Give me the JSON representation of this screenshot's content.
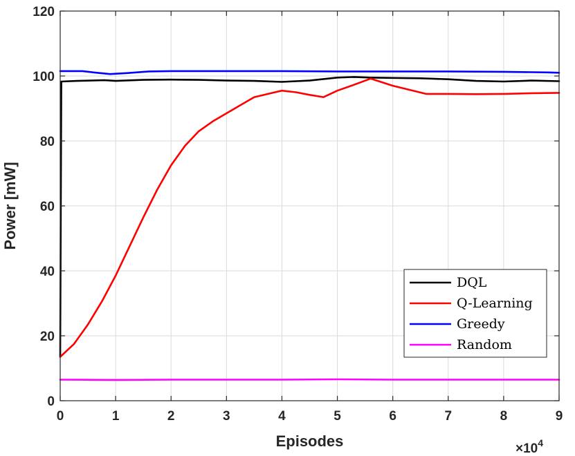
{
  "chart_data": {
    "type": "line",
    "title": "",
    "xlabel": "Episodes",
    "ylabel": "Power [mW]",
    "x_multiplier": "×10",
    "x_multiplier_exp": "4",
    "xlim": [
      0,
      9
    ],
    "ylim": [
      0,
      120
    ],
    "xticks": [
      0,
      1,
      2,
      3,
      4,
      5,
      6,
      7,
      8,
      9
    ],
    "yticks": [
      0,
      20,
      40,
      60,
      80,
      100,
      120
    ],
    "grid": true,
    "legend_position": "bottom-right",
    "series": [
      {
        "name": "DQL",
        "color": "#000000",
        "x": [
          0,
          0.02,
          0.3,
          0.8,
          1.0,
          1.5,
          2.0,
          2.5,
          3.0,
          3.5,
          4.0,
          4.5,
          5.0,
          5.3,
          5.6,
          6.0,
          6.5,
          7.0,
          7.5,
          8.0,
          8.5,
          9.0
        ],
        "y": [
          13.5,
          98.3,
          98.5,
          98.7,
          98.5,
          98.8,
          98.9,
          98.8,
          98.6,
          98.5,
          98.2,
          98.6,
          99.5,
          99.7,
          99.5,
          99.4,
          99.3,
          99.0,
          98.5,
          98.3,
          98.6,
          98.4
        ]
      },
      {
        "name": "Q-Learning",
        "color": "#ff0000",
        "x": [
          0,
          0.25,
          0.5,
          0.75,
          1.0,
          1.25,
          1.5,
          1.75,
          2.0,
          2.25,
          2.5,
          2.75,
          3.0,
          3.25,
          3.5,
          3.75,
          4.0,
          4.25,
          4.5,
          4.75,
          5.0,
          5.25,
          5.6,
          6.0,
          6.6,
          7.0,
          7.5,
          8.0,
          8.5,
          9.0
        ],
        "y": [
          13.5,
          17.5,
          23.5,
          30.5,
          38.5,
          47.5,
          56.5,
          65.0,
          72.5,
          78.5,
          83.0,
          86.0,
          88.5,
          91.0,
          93.5,
          94.5,
          95.5,
          95.0,
          94.2,
          93.5,
          95.5,
          97.0,
          99.2,
          97.0,
          94.5,
          94.5,
          94.4,
          94.5,
          94.7,
          94.8
        ]
      },
      {
        "name": "Greedy",
        "color": "#0000ff",
        "x": [
          0,
          0.4,
          0.6,
          0.9,
          1.2,
          1.6,
          2.0,
          3.0,
          4.0,
          5.0,
          6.0,
          7.0,
          8.0,
          8.8,
          9.0
        ],
        "y": [
          101.5,
          101.5,
          101.1,
          100.6,
          100.9,
          101.4,
          101.5,
          101.5,
          101.5,
          101.4,
          101.4,
          101.4,
          101.3,
          101.1,
          101.0
        ]
      },
      {
        "name": "Random",
        "color": "#ff00ff",
        "x": [
          0,
          1,
          2,
          3,
          4,
          5,
          6,
          7,
          8,
          9
        ],
        "y": [
          6.5,
          6.4,
          6.5,
          6.5,
          6.5,
          6.6,
          6.5,
          6.5,
          6.5,
          6.5
        ]
      }
    ]
  }
}
